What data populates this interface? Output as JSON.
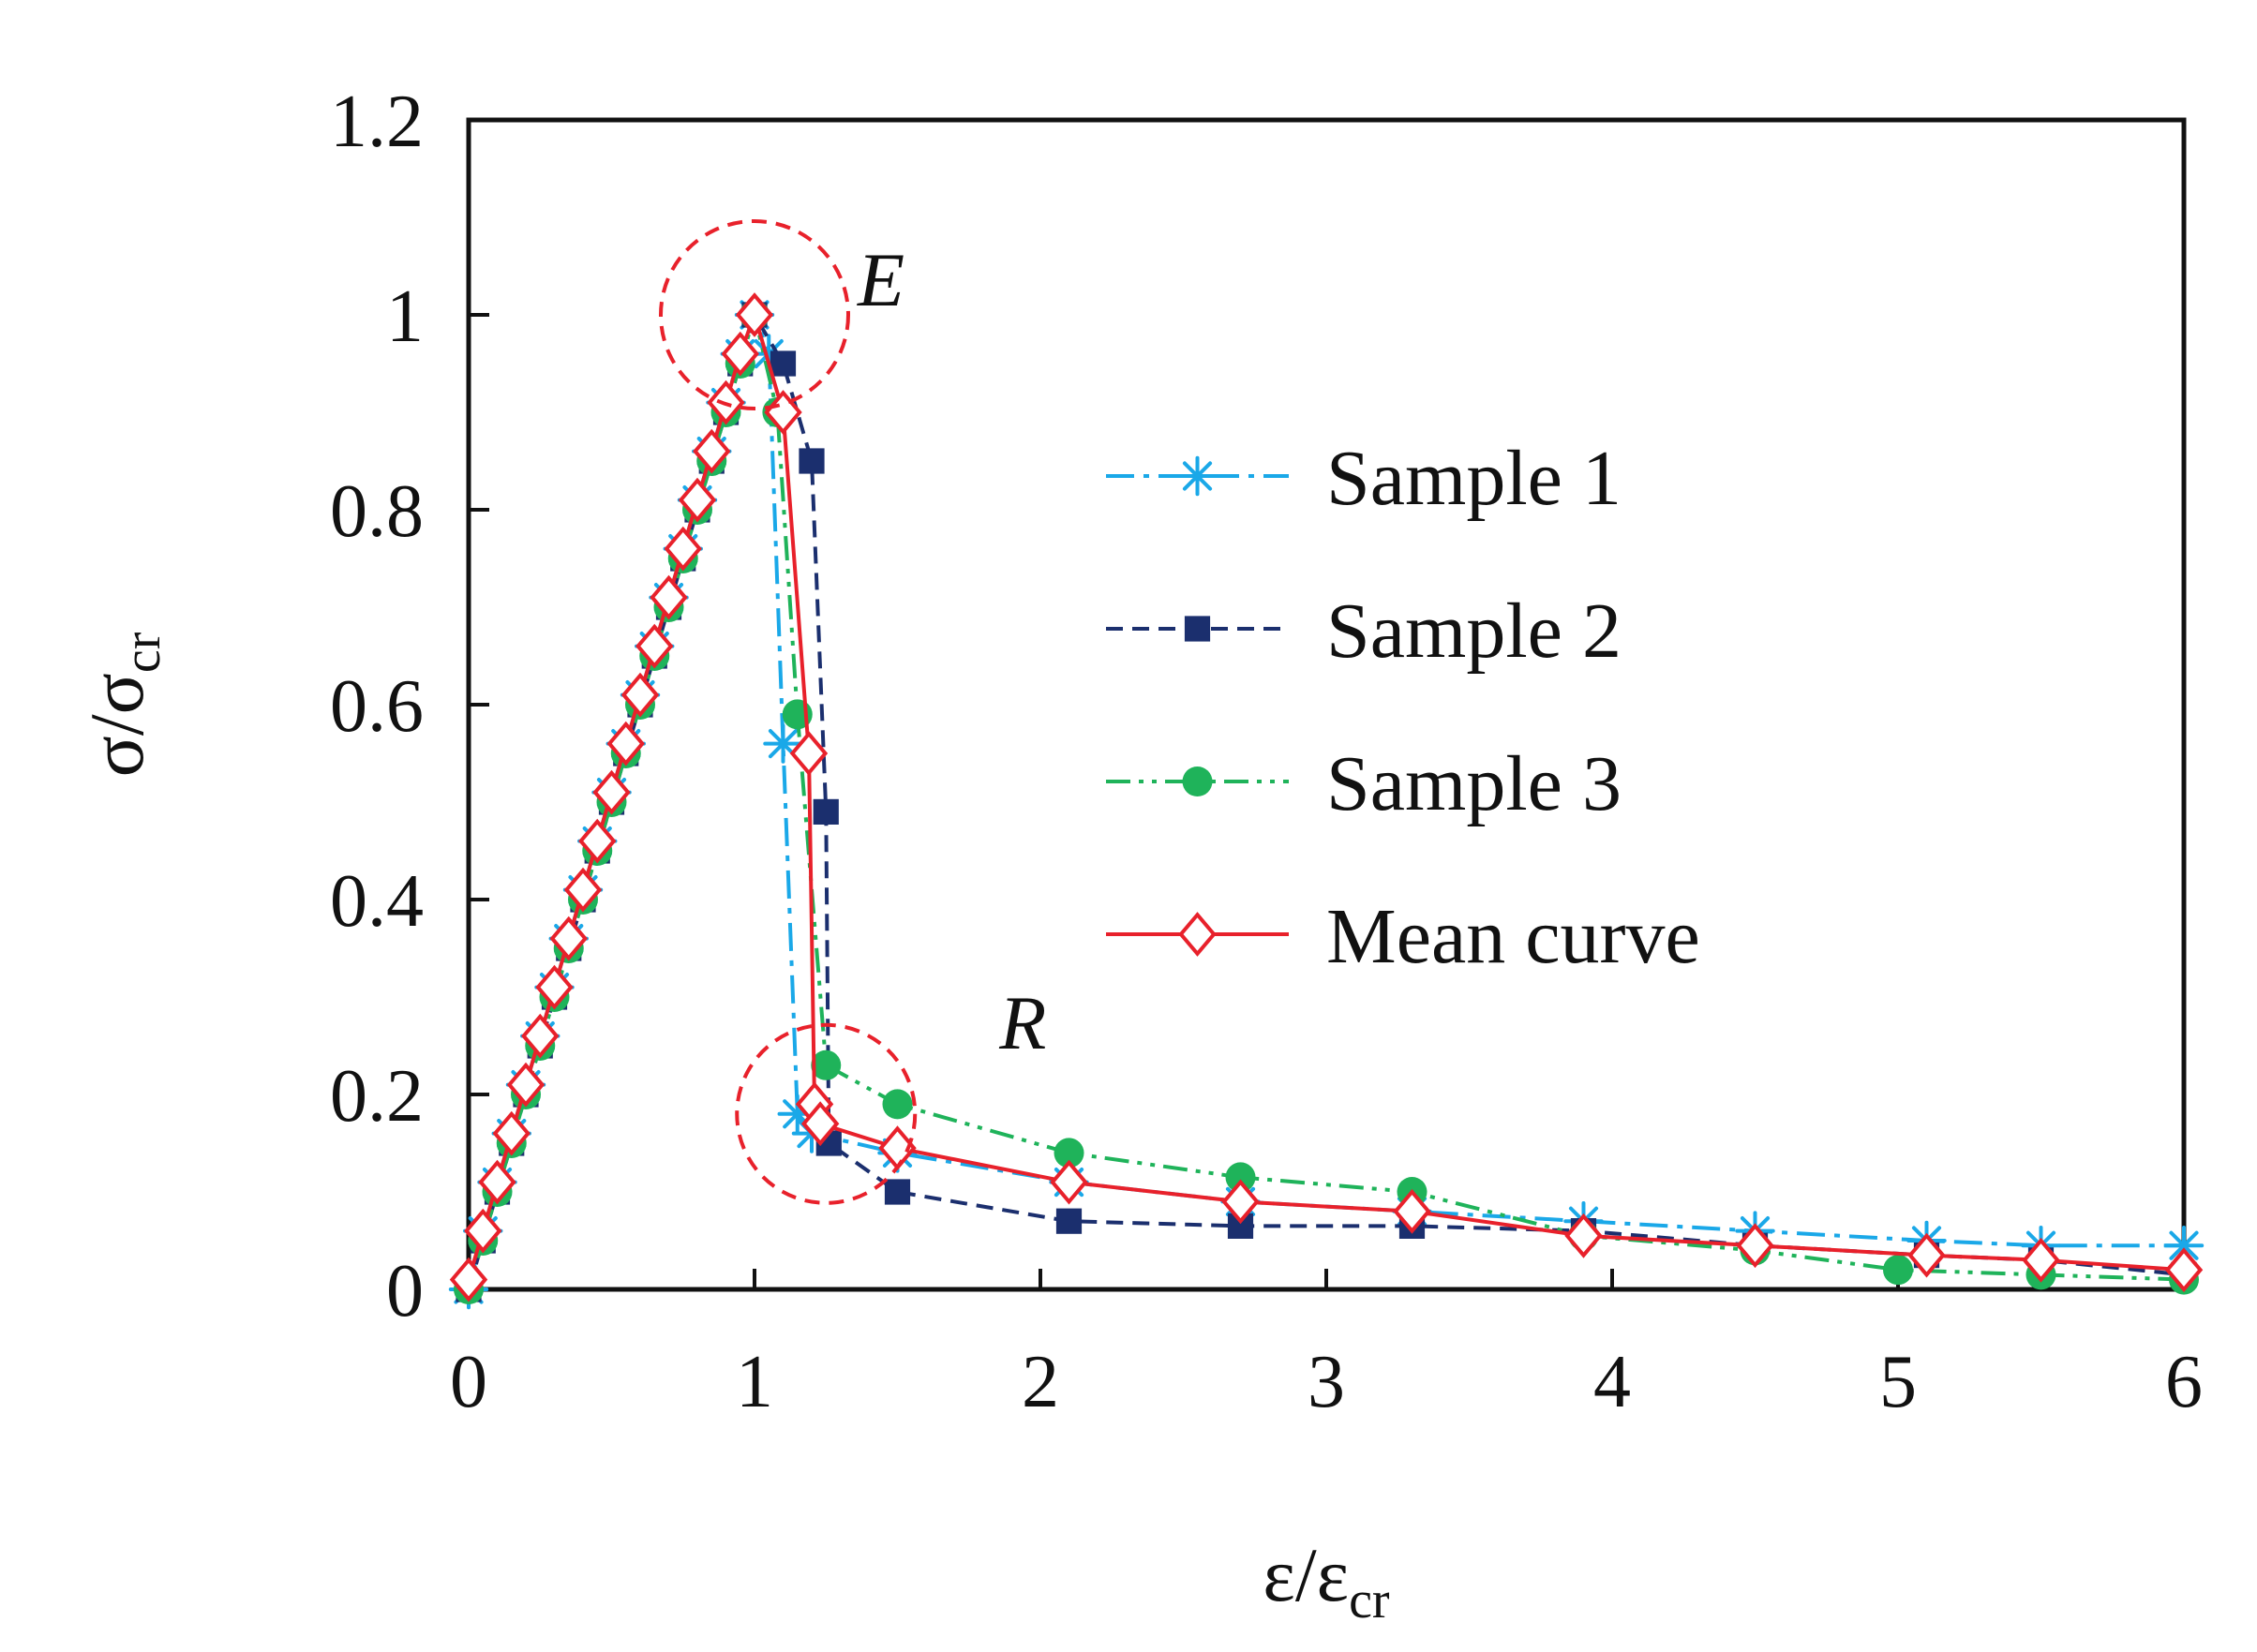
{
  "chart_data": {
    "type": "line",
    "title": "",
    "xlabel": {
      "main": "ε/ε",
      "sub": "cr"
    },
    "ylabel": {
      "main": "σ/σ",
      "sub": "cr"
    },
    "xlim": [
      0,
      6
    ],
    "ylim": [
      0,
      1.2
    ],
    "xticks": [
      "0",
      "1",
      "2",
      "3",
      "4",
      "5",
      "6"
    ],
    "yticks": [
      "0",
      "0.2",
      "0.4",
      "0.6",
      "0.8",
      "1",
      "1.2"
    ],
    "grid": false,
    "legend_position": "center-right",
    "series": [
      {
        "name": "Sample 1",
        "color": "#1aa8e8",
        "marker": "asterisk",
        "dash": "dash-dot",
        "x": [
          0,
          0.05,
          0.1,
          0.15,
          0.2,
          0.25,
          0.3,
          0.35,
          0.4,
          0.45,
          0.5,
          0.55,
          0.6,
          0.65,
          0.7,
          0.75,
          0.8,
          0.85,
          0.9,
          0.95,
          1.0,
          1.05,
          1.1,
          1.15,
          1.2,
          1.5,
          2.1,
          2.7,
          3.3,
          3.9,
          4.5,
          5.1,
          5.5,
          6.0
        ],
        "y": [
          0,
          0.06,
          0.11,
          0.16,
          0.21,
          0.26,
          0.31,
          0.36,
          0.41,
          0.46,
          0.51,
          0.56,
          0.61,
          0.66,
          0.71,
          0.76,
          0.81,
          0.86,
          0.91,
          0.96,
          1.0,
          0.96,
          0.56,
          0.18,
          0.16,
          0.14,
          0.11,
          0.09,
          0.08,
          0.07,
          0.06,
          0.05,
          0.045,
          0.045
        ]
      },
      {
        "name": "Sample 2",
        "color": "#1b2f6e",
        "marker": "square",
        "dash": "dash",
        "x": [
          0,
          0.05,
          0.1,
          0.15,
          0.2,
          0.25,
          0.3,
          0.35,
          0.4,
          0.45,
          0.5,
          0.55,
          0.6,
          0.65,
          0.7,
          0.75,
          0.8,
          0.85,
          0.9,
          0.95,
          1.0,
          1.1,
          1.2,
          1.25,
          1.26,
          1.5,
          2.1,
          2.7,
          3.3,
          3.9,
          4.5,
          5.1,
          5.5,
          6.0
        ],
        "y": [
          0,
          0.05,
          0.1,
          0.15,
          0.2,
          0.25,
          0.3,
          0.35,
          0.4,
          0.45,
          0.5,
          0.55,
          0.6,
          0.65,
          0.7,
          0.75,
          0.8,
          0.85,
          0.9,
          0.95,
          1.0,
          0.95,
          0.85,
          0.49,
          0.15,
          0.1,
          0.07,
          0.065,
          0.065,
          0.06,
          0.045,
          0.035,
          0.03,
          0.015
        ]
      },
      {
        "name": "Sample 3",
        "color": "#1fb35a",
        "marker": "circle",
        "dash": "dash-dot-dot",
        "x": [
          0,
          0.05,
          0.1,
          0.15,
          0.2,
          0.25,
          0.3,
          0.35,
          0.4,
          0.45,
          0.5,
          0.55,
          0.6,
          0.65,
          0.7,
          0.75,
          0.8,
          0.85,
          0.9,
          0.95,
          1.0,
          1.08,
          1.15,
          1.25,
          1.5,
          2.1,
          2.7,
          3.3,
          3.9,
          4.5,
          5.0,
          5.5,
          6.0
        ],
        "y": [
          0,
          0.05,
          0.1,
          0.15,
          0.2,
          0.25,
          0.3,
          0.35,
          0.4,
          0.45,
          0.5,
          0.55,
          0.6,
          0.65,
          0.7,
          0.75,
          0.8,
          0.85,
          0.9,
          0.95,
          1.0,
          0.9,
          0.59,
          0.23,
          0.19,
          0.14,
          0.115,
          0.1,
          0.055,
          0.04,
          0.02,
          0.015,
          0.01
        ]
      },
      {
        "name": "Mean curve",
        "color": "#e8212b",
        "marker": "diamond",
        "dash": "solid",
        "x": [
          0,
          0.05,
          0.1,
          0.15,
          0.2,
          0.25,
          0.3,
          0.35,
          0.4,
          0.45,
          0.5,
          0.55,
          0.6,
          0.65,
          0.7,
          0.75,
          0.8,
          0.85,
          0.9,
          0.95,
          1.0,
          1.1,
          1.19,
          1.21,
          1.23,
          1.5,
          2.1,
          2.7,
          3.3,
          3.9,
          4.5,
          5.1,
          5.5,
          6.0
        ],
        "y": [
          0.01,
          0.06,
          0.11,
          0.16,
          0.21,
          0.26,
          0.31,
          0.36,
          0.41,
          0.46,
          0.51,
          0.56,
          0.61,
          0.66,
          0.71,
          0.76,
          0.81,
          0.86,
          0.91,
          0.96,
          1.0,
          0.9,
          0.55,
          0.19,
          0.17,
          0.145,
          0.11,
          0.09,
          0.08,
          0.055,
          0.045,
          0.035,
          0.03,
          0.02
        ]
      }
    ],
    "annotations": [
      {
        "label": "E",
        "x": 1.0,
        "y": 1.0,
        "ring_color": "#e8212b"
      },
      {
        "label": "R",
        "x": 1.25,
        "y": 0.18,
        "ring_color": "#e8212b"
      }
    ]
  }
}
